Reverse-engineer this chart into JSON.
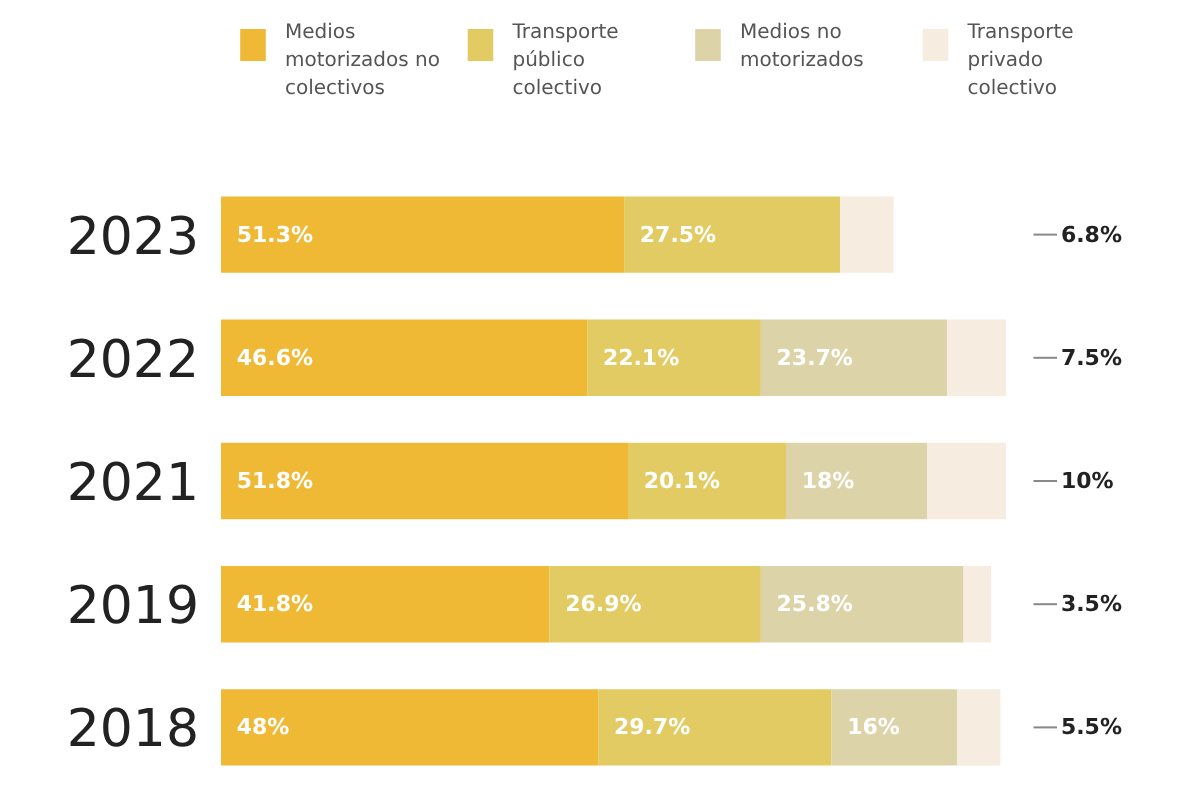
{
  "chart_data": {
    "type": "bar",
    "orientation": "horizontal",
    "stacked": true,
    "legend": "top",
    "grid": false,
    "categories": [
      "2023",
      "2022",
      "2021",
      "2019",
      "2018"
    ],
    "series": [
      {
        "name": "Medios motorizados no colectivos",
        "color": "#efb935",
        "values": [
          51.3,
          46.6,
          51.8,
          41.8,
          48
        ],
        "value_labels": [
          "51.3%",
          "46.6%",
          "51.8%",
          "41.8%",
          "48%"
        ]
      },
      {
        "name": "Transporte público colectivo",
        "color": "#e2cb62",
        "values": [
          27.5,
          22.1,
          20.1,
          26.9,
          29.7
        ],
        "value_labels": [
          "27.5%",
          "22.1%",
          "20.1%",
          "26.9%",
          "29.7%"
        ]
      },
      {
        "name": "Medios no motorizados",
        "color": "#ddd3a8",
        "values": [
          null,
          23.7,
          18,
          25.8,
          16
        ],
        "value_labels": [
          null,
          "23.7%",
          "18%",
          "25.8%",
          "16%"
        ]
      },
      {
        "name": "Transporte privado colectivo",
        "color": "#f6ede0",
        "values": [
          6.8,
          7.5,
          10,
          3.5,
          5.5
        ],
        "value_labels": [
          "6.8%",
          "7.5%",
          "10%",
          "3.5%",
          "5.5%"
        ]
      }
    ]
  }
}
